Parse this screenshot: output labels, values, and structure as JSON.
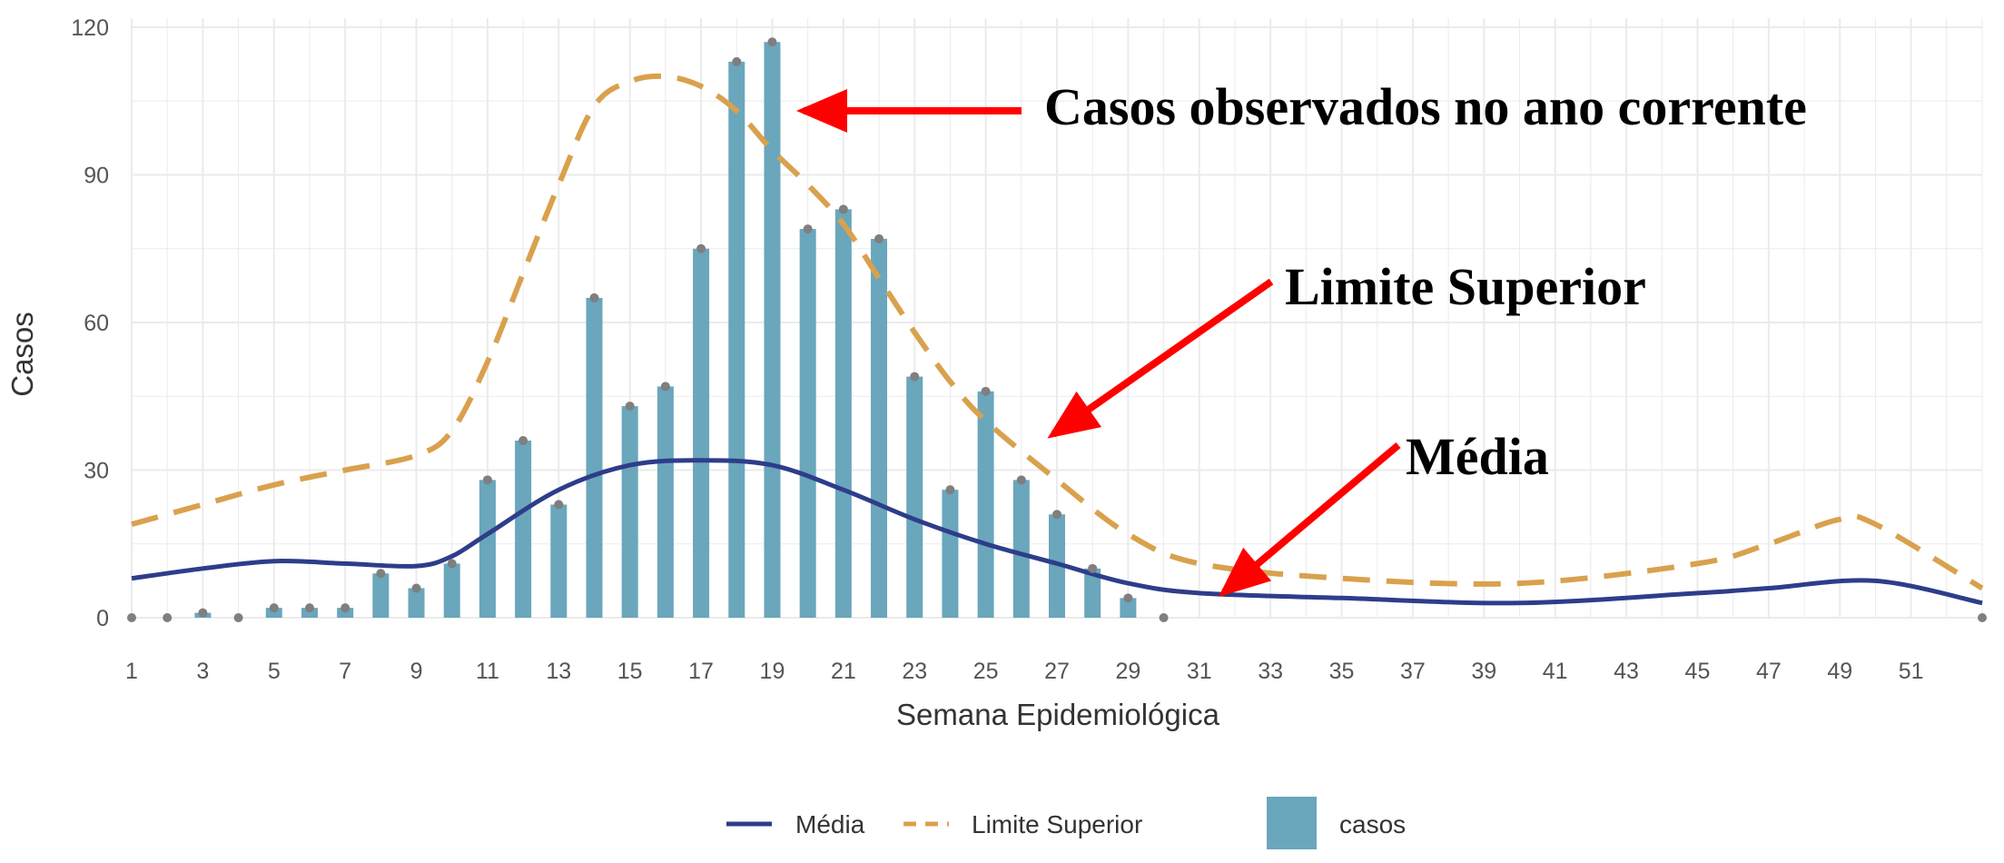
{
  "chart_data": {
    "type": "bar",
    "xlabel": "Semana Epidemiológica",
    "ylabel": "Casos",
    "xlim": [
      1,
      53
    ],
    "ylim": [
      0,
      120
    ],
    "x_ticks": [
      1,
      3,
      5,
      7,
      9,
      11,
      13,
      15,
      17,
      19,
      21,
      23,
      25,
      27,
      29,
      31,
      33,
      35,
      37,
      39,
      41,
      43,
      45,
      47,
      49,
      51
    ],
    "y_ticks": [
      0,
      30,
      60,
      90,
      120
    ],
    "grid": true,
    "legend_position": "bottom",
    "series": [
      {
        "name": "casos",
        "type": "bar",
        "color": "#6AA6BC",
        "x": [
          1,
          2,
          3,
          4,
          5,
          6,
          7,
          8,
          9,
          10,
          11,
          12,
          13,
          14,
          15,
          16,
          17,
          18,
          19,
          20,
          21,
          22,
          23,
          24,
          25,
          26,
          27,
          28,
          29,
          30,
          53
        ],
        "values": [
          0,
          0,
          1,
          0,
          2,
          2,
          2,
          9,
          6,
          11,
          28,
          36,
          23,
          65,
          43,
          47,
          75,
          113,
          117,
          79,
          83,
          77,
          49,
          26,
          46,
          28,
          21,
          10,
          4,
          0,
          0
        ]
      },
      {
        "name": "Média",
        "type": "line",
        "style": "solid",
        "color": "#2E3D8A",
        "x": [
          1,
          3,
          5,
          7,
          9,
          10,
          11,
          13,
          15,
          17,
          19,
          21,
          23,
          25,
          27,
          29,
          31,
          35,
          40,
          45,
          47,
          50,
          53
        ],
        "values": [
          8,
          10,
          11.5,
          11,
          10.5,
          12.5,
          17,
          26,
          31,
          32,
          31,
          26,
          20,
          15,
          11,
          7,
          5,
          4,
          3,
          5,
          6,
          7.5,
          3
        ]
      },
      {
        "name": "Limite Superior",
        "type": "line",
        "style": "dashed",
        "color": "#D9A14E",
        "x": [
          1,
          3,
          5,
          7,
          9,
          10,
          11,
          12,
          13,
          14,
          15,
          16,
          17,
          18,
          19,
          20,
          21,
          22,
          23,
          24,
          25,
          27,
          29,
          31,
          35,
          40,
          45,
          47,
          49,
          50,
          53
        ],
        "values": [
          19,
          23,
          27,
          30,
          33,
          38,
          52,
          70,
          88,
          104,
          109,
          110,
          108,
          103,
          95,
          88,
          80,
          69,
          58,
          48,
          40,
          28,
          17,
          11,
          8,
          7,
          11,
          15,
          20,
          19,
          6
        ]
      }
    ],
    "annotations": [
      {
        "text": "Casos observados no ano corrente",
        "color": "#FF0000"
      },
      {
        "text": "Limite Superior",
        "color": "#FF0000"
      },
      {
        "text": "Média",
        "color": "#FF0000"
      }
    ]
  }
}
